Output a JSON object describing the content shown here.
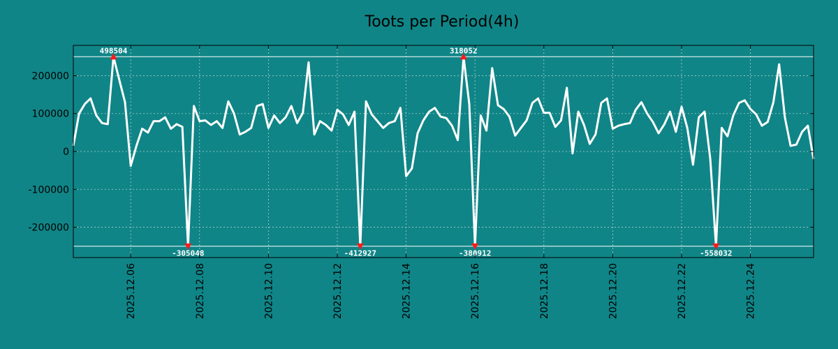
{
  "chart_data": {
    "type": "line",
    "title": "Toots per Period(4h)",
    "xlabel": "",
    "ylabel": "",
    "ylim": [
      -280000,
      280000
    ],
    "clip": {
      "upper": 250000,
      "lower": -250000
    },
    "x_start": "2025.12.04 08:00",
    "step_hours": 4,
    "xlim_index": [
      0,
      129
    ],
    "x_tick_labels": [
      "2025.12.06",
      "2025.12.08",
      "2025.12.10",
      "2025.12.12",
      "2025.12.14",
      "2025.12.16",
      "2025.12.18",
      "2025.12.20",
      "2025.12.22",
      "2025.12.24"
    ],
    "x_tick_index": [
      10,
      22,
      34,
      46,
      58,
      70,
      82,
      94,
      106,
      118
    ],
    "y_ticks": [
      -200000,
      -100000,
      0,
      100000,
      200000
    ],
    "y_tick_labels": [
      "-200000",
      "-100000",
      "0",
      "100000",
      "200000"
    ],
    "series": [
      {
        "name": "Toots per Period(4h)",
        "color": "#ffffff",
        "values": [
          15000,
          100000,
          125000,
          140000,
          95000,
          75000,
          72000,
          250000,
          190000,
          130000,
          -38000,
          15000,
          60000,
          50000,
          80000,
          80000,
          90000,
          60000,
          72000,
          65000,
          -250000,
          120000,
          80000,
          82000,
          70000,
          80000,
          62000,
          132000,
          100000,
          45000,
          52000,
          62000,
          120000,
          125000,
          62000,
          95000,
          75000,
          90000,
          120000,
          75000,
          102000,
          235000,
          45000,
          80000,
          70000,
          55000,
          110000,
          98000,
          70000,
          105000,
          -250000,
          132000,
          98000,
          80000,
          62000,
          75000,
          80000,
          115000,
          -65000,
          -45000,
          48000,
          82000,
          105000,
          115000,
          92000,
          88000,
          68000,
          30000,
          250000,
          125000,
          -250000,
          95000,
          55000,
          220000,
          122000,
          112000,
          92000,
          42000,
          62000,
          82000,
          128000,
          140000,
          102000,
          102000,
          65000,
          82000,
          168000,
          -5000,
          105000,
          70000,
          20000,
          45000,
          128000,
          140000,
          60000,
          68000,
          72000,
          75000,
          110000,
          130000,
          100000,
          78000,
          48000,
          72000,
          105000,
          52000,
          118000,
          62000,
          -35000,
          90000,
          105000,
          -20000,
          -250000,
          62000,
          40000,
          95000,
          128000,
          135000,
          112000,
          98000,
          68000,
          78000,
          130000,
          230000,
          90000,
          15000,
          18000,
          52000,
          68000,
          -20000
        ]
      }
    ],
    "annotations": [
      {
        "label": "498504",
        "index": 7,
        "side": "top"
      },
      {
        "label": "-305048",
        "index": 20,
        "side": "bottom"
      },
      {
        "label": "-412927",
        "index": 50,
        "side": "bottom"
      },
      {
        "label": "318052",
        "index": 68,
        "side": "top"
      },
      {
        "label": "-380912",
        "index": 70,
        "side": "bottom"
      },
      {
        "label": "-558032",
        "index": 112,
        "side": "bottom"
      }
    ],
    "grid": true,
    "legend": "none"
  }
}
